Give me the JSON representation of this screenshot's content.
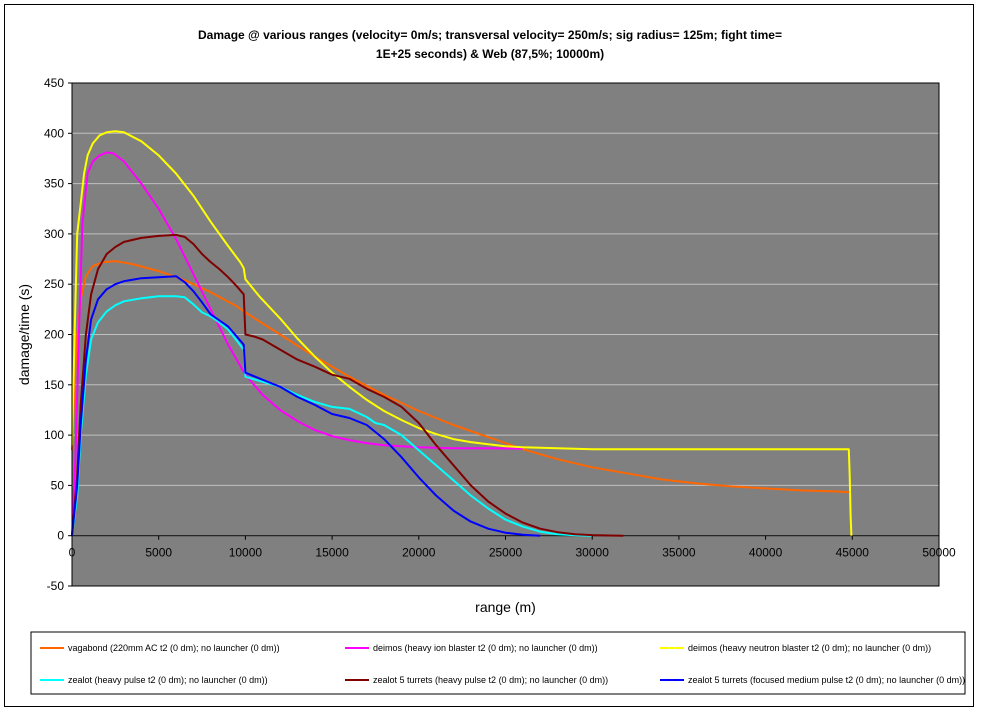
{
  "chart_data": {
    "type": "line",
    "title_lines": [
      "Damage @ various ranges (velocity= 0m/s; transversal velocity= 250m/s; sig radius= 125m; fight time=",
      "1E+25 seconds) & Web (87,5%; 10000m)"
    ],
    "xlabel": "range (m)",
    "ylabel": "damage/time (s)",
    "xlim": [
      0,
      50000
    ],
    "ylim": [
      -50,
      450
    ],
    "x_ticks": [
      0,
      5000,
      10000,
      15000,
      20000,
      25000,
      30000,
      35000,
      40000,
      45000,
      50000
    ],
    "y_ticks": [
      -50,
      0,
      50,
      100,
      150,
      200,
      250,
      300,
      350,
      400,
      450
    ],
    "grid": true,
    "legend_position": "bottom",
    "plot_background": "#808080",
    "series": [
      {
        "name": "vagabond (220mm AC t2 (0 dm); no launcher (0 dm))",
        "color": "#ff6600",
        "points": [
          [
            0,
            85
          ],
          [
            150,
            150
          ],
          [
            300,
            200
          ],
          [
            500,
            235
          ],
          [
            800,
            258
          ],
          [
            1200,
            268
          ],
          [
            1800,
            272
          ],
          [
            2500,
            273
          ],
          [
            3500,
            270
          ],
          [
            5000,
            263
          ],
          [
            6500,
            254
          ],
          [
            8000,
            242
          ],
          [
            9500,
            228
          ],
          [
            10000,
            222
          ],
          [
            12000,
            200
          ],
          [
            14000,
            178
          ],
          [
            16000,
            158
          ],
          [
            18000,
            140
          ],
          [
            20000,
            124
          ],
          [
            22000,
            110
          ],
          [
            24000,
            98
          ],
          [
            26000,
            86
          ],
          [
            28000,
            76
          ],
          [
            30000,
            68
          ],
          [
            32000,
            62
          ],
          [
            34000,
            56
          ],
          [
            36000,
            52
          ],
          [
            38000,
            49
          ],
          [
            40000,
            47
          ],
          [
            42000,
            45
          ],
          [
            44000,
            44
          ],
          [
            44900,
            43
          ]
        ]
      },
      {
        "name": "deimos (heavy ion blaster t2 (0 dm); no launcher (0 dm))",
        "color": "#ff00ff",
        "points": [
          [
            0,
            0
          ],
          [
            200,
            80
          ],
          [
            400,
            200
          ],
          [
            600,
            310
          ],
          [
            900,
            360
          ],
          [
            1200,
            372
          ],
          [
            1600,
            378
          ],
          [
            2000,
            381
          ],
          [
            2400,
            380
          ],
          [
            3000,
            372
          ],
          [
            4000,
            350
          ],
          [
            5000,
            325
          ],
          [
            6000,
            295
          ],
          [
            7000,
            260
          ],
          [
            8000,
            225
          ],
          [
            9000,
            190
          ],
          [
            10000,
            160
          ],
          [
            11000,
            140
          ],
          [
            12000,
            125
          ],
          [
            13000,
            114
          ],
          [
            14000,
            105
          ],
          [
            15000,
            99
          ],
          [
            16000,
            95
          ],
          [
            17000,
            92
          ],
          [
            18000,
            90
          ],
          [
            19000,
            89
          ],
          [
            20000,
            88
          ],
          [
            22000,
            87
          ],
          [
            24000,
            87
          ],
          [
            26000,
            86.5
          ]
        ]
      },
      {
        "name": "deimos (heavy neutron blaster t2 (0 dm); no launcher (0 dm))",
        "color": "#ffff00",
        "points": [
          [
            0,
            90
          ],
          [
            150,
            200
          ],
          [
            300,
            300
          ],
          [
            500,
            330
          ],
          [
            700,
            360
          ],
          [
            900,
            378
          ],
          [
            1200,
            390
          ],
          [
            1600,
            398
          ],
          [
            2000,
            401
          ],
          [
            2500,
            402
          ],
          [
            3000,
            401
          ],
          [
            4000,
            392
          ],
          [
            5000,
            378
          ],
          [
            6000,
            360
          ],
          [
            7000,
            338
          ],
          [
            8000,
            312
          ],
          [
            9000,
            288
          ],
          [
            9700,
            272
          ],
          [
            9900,
            266
          ],
          [
            10000,
            255
          ],
          [
            10800,
            238
          ],
          [
            12000,
            216
          ],
          [
            13000,
            196
          ],
          [
            14000,
            178
          ],
          [
            15000,
            162
          ],
          [
            16000,
            148
          ],
          [
            17000,
            135
          ],
          [
            18000,
            124
          ],
          [
            19000,
            115
          ],
          [
            20000,
            107
          ],
          [
            21000,
            101
          ],
          [
            22000,
            96
          ],
          [
            23000,
            93
          ],
          [
            24000,
            91
          ],
          [
            25000,
            89
          ],
          [
            26000,
            88
          ],
          [
            28000,
            87
          ],
          [
            30000,
            86
          ],
          [
            35000,
            86
          ],
          [
            40000,
            86
          ],
          [
            44800,
            86
          ],
          [
            44850,
            60
          ],
          [
            44900,
            20
          ],
          [
            44950,
            0
          ]
        ]
      },
      {
        "name": "zealot (heavy pulse t2 (0 dm); no launcher (0 dm))",
        "color": "#00ffff",
        "points": [
          [
            0,
            0
          ],
          [
            300,
            40
          ],
          [
            500,
            100
          ],
          [
            800,
            160
          ],
          [
            1100,
            195
          ],
          [
            1500,
            212
          ],
          [
            2000,
            223
          ],
          [
            2500,
            229
          ],
          [
            3000,
            233
          ],
          [
            4000,
            236
          ],
          [
            5000,
            238
          ],
          [
            6000,
            238
          ],
          [
            6500,
            237
          ],
          [
            7000,
            230
          ],
          [
            7500,
            222
          ],
          [
            8000,
            218
          ],
          [
            8500,
            212
          ],
          [
            9000,
            205
          ],
          [
            9500,
            194
          ],
          [
            9900,
            185
          ],
          [
            10000,
            158
          ],
          [
            11000,
            153
          ],
          [
            12000,
            148
          ],
          [
            13000,
            140
          ],
          [
            14000,
            133
          ],
          [
            15000,
            128
          ],
          [
            16000,
            126
          ],
          [
            17000,
            118
          ],
          [
            17500,
            112
          ],
          [
            18000,
            110
          ],
          [
            19000,
            100
          ],
          [
            20000,
            85
          ],
          [
            21000,
            70
          ],
          [
            22000,
            55
          ],
          [
            23000,
            40
          ],
          [
            24000,
            27
          ],
          [
            25000,
            16
          ],
          [
            26000,
            9
          ],
          [
            27000,
            4
          ],
          [
            28000,
            1.5
          ],
          [
            29000,
            0.5
          ],
          [
            30000,
            0
          ]
        ]
      },
      {
        "name": "zealot 5 turrets (heavy pulse t2 (0 dm); no launcher (0 dm))",
        "color": "#800000",
        "points": [
          [
            0,
            0
          ],
          [
            300,
            60
          ],
          [
            500,
            130
          ],
          [
            800,
            200
          ],
          [
            1100,
            240
          ],
          [
            1500,
            265
          ],
          [
            2000,
            280
          ],
          [
            2500,
            287
          ],
          [
            3000,
            292
          ],
          [
            4000,
            296
          ],
          [
            5000,
            298
          ],
          [
            6000,
            299
          ],
          [
            6500,
            297
          ],
          [
            7000,
            290
          ],
          [
            7500,
            280
          ],
          [
            8000,
            272
          ],
          [
            8500,
            265
          ],
          [
            9000,
            257
          ],
          [
            9500,
            248
          ],
          [
            9900,
            240
          ],
          [
            10000,
            200
          ],
          [
            10500,
            198
          ],
          [
            11000,
            195
          ],
          [
            12000,
            185
          ],
          [
            13000,
            175
          ],
          [
            14000,
            168
          ],
          [
            15000,
            160
          ],
          [
            16000,
            156
          ],
          [
            17000,
            146
          ],
          [
            18000,
            138
          ],
          [
            19000,
            128
          ],
          [
            20000,
            112
          ],
          [
            21000,
            90
          ],
          [
            22000,
            70
          ],
          [
            23000,
            50
          ],
          [
            24000,
            34
          ],
          [
            25000,
            22
          ],
          [
            26000,
            13
          ],
          [
            27000,
            7
          ],
          [
            28000,
            3.5
          ],
          [
            29000,
            1.5
          ],
          [
            30000,
            0.6
          ],
          [
            31000,
            0.2
          ],
          [
            31800,
            0
          ]
        ]
      },
      {
        "name": "zealot 5 turrets (focused medium pulse t2 (0 dm); no launcher (0 dm))",
        "color": "#0000ff",
        "points": [
          [
            0,
            0
          ],
          [
            300,
            50
          ],
          [
            500,
            110
          ],
          [
            800,
            175
          ],
          [
            1100,
            215
          ],
          [
            1500,
            235
          ],
          [
            2000,
            245
          ],
          [
            2500,
            250
          ],
          [
            3000,
            253
          ],
          [
            4000,
            256
          ],
          [
            5000,
            257
          ],
          [
            6000,
            258
          ],
          [
            6500,
            252
          ],
          [
            7000,
            243
          ],
          [
            7500,
            232
          ],
          [
            8000,
            220
          ],
          [
            8500,
            214
          ],
          [
            9000,
            208
          ],
          [
            9500,
            198
          ],
          [
            9900,
            190
          ],
          [
            10000,
            162
          ],
          [
            11000,
            155
          ],
          [
            12000,
            148
          ],
          [
            13000,
            138
          ],
          [
            14000,
            130
          ],
          [
            15000,
            121
          ],
          [
            16000,
            117
          ],
          [
            17000,
            110
          ],
          [
            18000,
            96
          ],
          [
            19000,
            78
          ],
          [
            20000,
            58
          ],
          [
            21000,
            40
          ],
          [
            22000,
            25
          ],
          [
            23000,
            14
          ],
          [
            24000,
            7
          ],
          [
            25000,
            3
          ],
          [
            26000,
            1
          ],
          [
            27000,
            0
          ]
        ]
      }
    ]
  }
}
